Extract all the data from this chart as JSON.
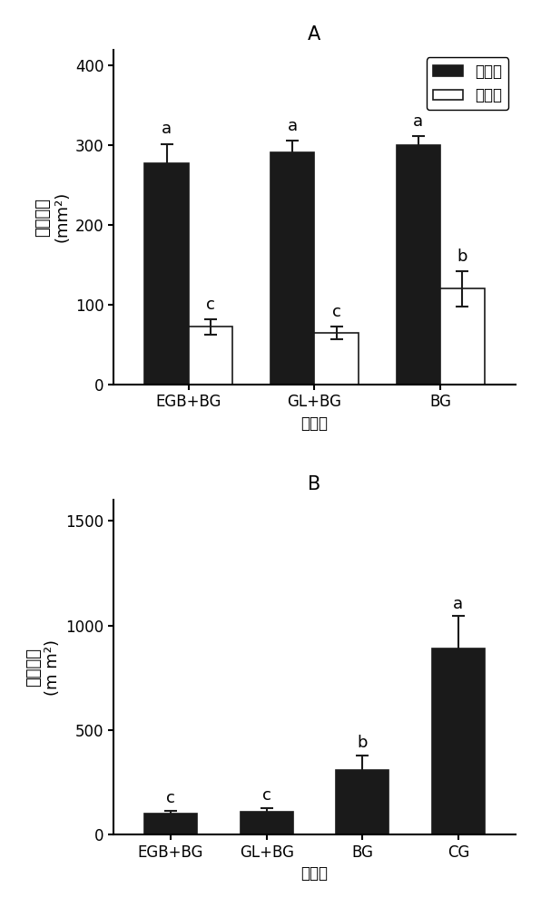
{
  "panel_A": {
    "title": "A",
    "categories": [
      "EGB+BG",
      "GL+BG",
      "BG"
    ],
    "experimental_values": [
      277,
      291,
      300
    ],
    "experimental_errors": [
      25,
      15,
      12
    ],
    "control_values": [
      72,
      65,
      120
    ],
    "control_errors": [
      10,
      8,
      22
    ],
    "exp_letters": [
      "a",
      "a",
      "a"
    ],
    "ctrl_letters": [
      "c",
      "c",
      "b"
    ],
    "ylabel_chinese": "取食面积",
    "ylabel_unit": "(mm²)",
    "xlabel": "组合物",
    "ylim": [
      0,
      420
    ],
    "yticks": [
      0,
      100,
      200,
      300,
      400
    ],
    "legend_labels": [
      "实验组",
      "对照组"
    ]
  },
  "panel_B": {
    "title": "B",
    "categories": [
      "EGB+BG",
      "GL+BG",
      "BG",
      "CG"
    ],
    "values": [
      100,
      110,
      310,
      890
    ],
    "errors": [
      15,
      18,
      70,
      155
    ],
    "letters": [
      "c",
      "c",
      "b",
      "a"
    ],
    "ylabel_chinese": "取食面积",
    "ylabel_unit": "(m m²)",
    "xlabel": "组合物",
    "ylim": [
      0,
      1600
    ],
    "yticks": [
      0,
      500,
      1000,
      1500
    ]
  },
  "bar_width": 0.35,
  "black_color": "#1a1a1a",
  "white_color": "#ffffff",
  "edge_color": "#1a1a1a",
  "font_size": 12,
  "label_font_size": 13,
  "title_font_size": 15,
  "letter_font_size": 13,
  "background_color": "#ffffff"
}
